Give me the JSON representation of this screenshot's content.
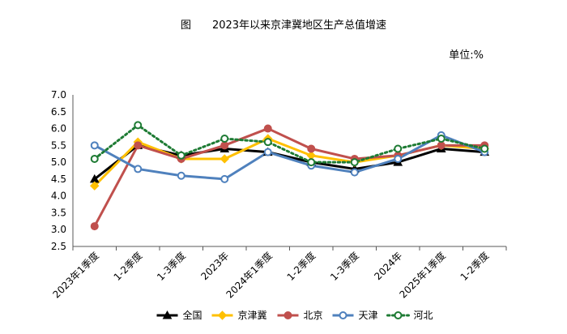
{
  "title": "图　　2023年以来京津冀地区生产总值增速",
  "unit_label": "单位:%",
  "chart_data": {
    "type": "line",
    "title": "图　　2023年以来京津冀地区生产总值增速",
    "unit": "单位:%",
    "categories": [
      "2023年1季度",
      "1-2季度",
      "1-3季度",
      "2023年",
      "2024年1季度",
      "1-2季度",
      "1-3季度",
      "2024年",
      "2025年1季度",
      "1-2季度"
    ],
    "ylim": [
      2.5,
      7.0
    ],
    "yticks": [
      "7.0",
      "6.5",
      "6.0",
      "5.5",
      "5.0",
      "4.5",
      "4.0",
      "3.5",
      "3.0",
      "2.5"
    ],
    "grid": false,
    "legend_position": "bottom",
    "series": [
      {
        "name": "全国",
        "color": "#000000",
        "marker": "triangle",
        "dashed": false,
        "values": [
          4.5,
          5.5,
          5.2,
          5.4,
          5.3,
          5.0,
          4.8,
          5.0,
          5.4,
          5.3
        ]
      },
      {
        "name": "京津冀",
        "color": "#FFC000",
        "marker": "diamond",
        "dashed": false,
        "values": [
          4.3,
          5.6,
          5.1,
          5.1,
          5.7,
          5.2,
          5.0,
          5.2,
          5.5,
          5.4
        ]
      },
      {
        "name": "北京",
        "color": "#C0504D",
        "marker": "circle",
        "dashed": false,
        "values": [
          3.1,
          5.5,
          5.1,
          5.5,
          6.0,
          5.4,
          5.1,
          5.2,
          5.5,
          5.5
        ]
      },
      {
        "name": "天津",
        "color": "#4F81BD",
        "marker": "circle-open",
        "dashed": false,
        "values": [
          5.5,
          4.8,
          4.6,
          4.5,
          5.3,
          4.9,
          4.7,
          5.1,
          5.8,
          5.3
        ]
      },
      {
        "name": "河北",
        "color": "#1E7B34",
        "marker": "circle-open",
        "dashed": true,
        "values": [
          5.1,
          6.1,
          5.2,
          5.7,
          5.6,
          5.0,
          5.0,
          5.4,
          5.7,
          5.4
        ]
      }
    ]
  }
}
